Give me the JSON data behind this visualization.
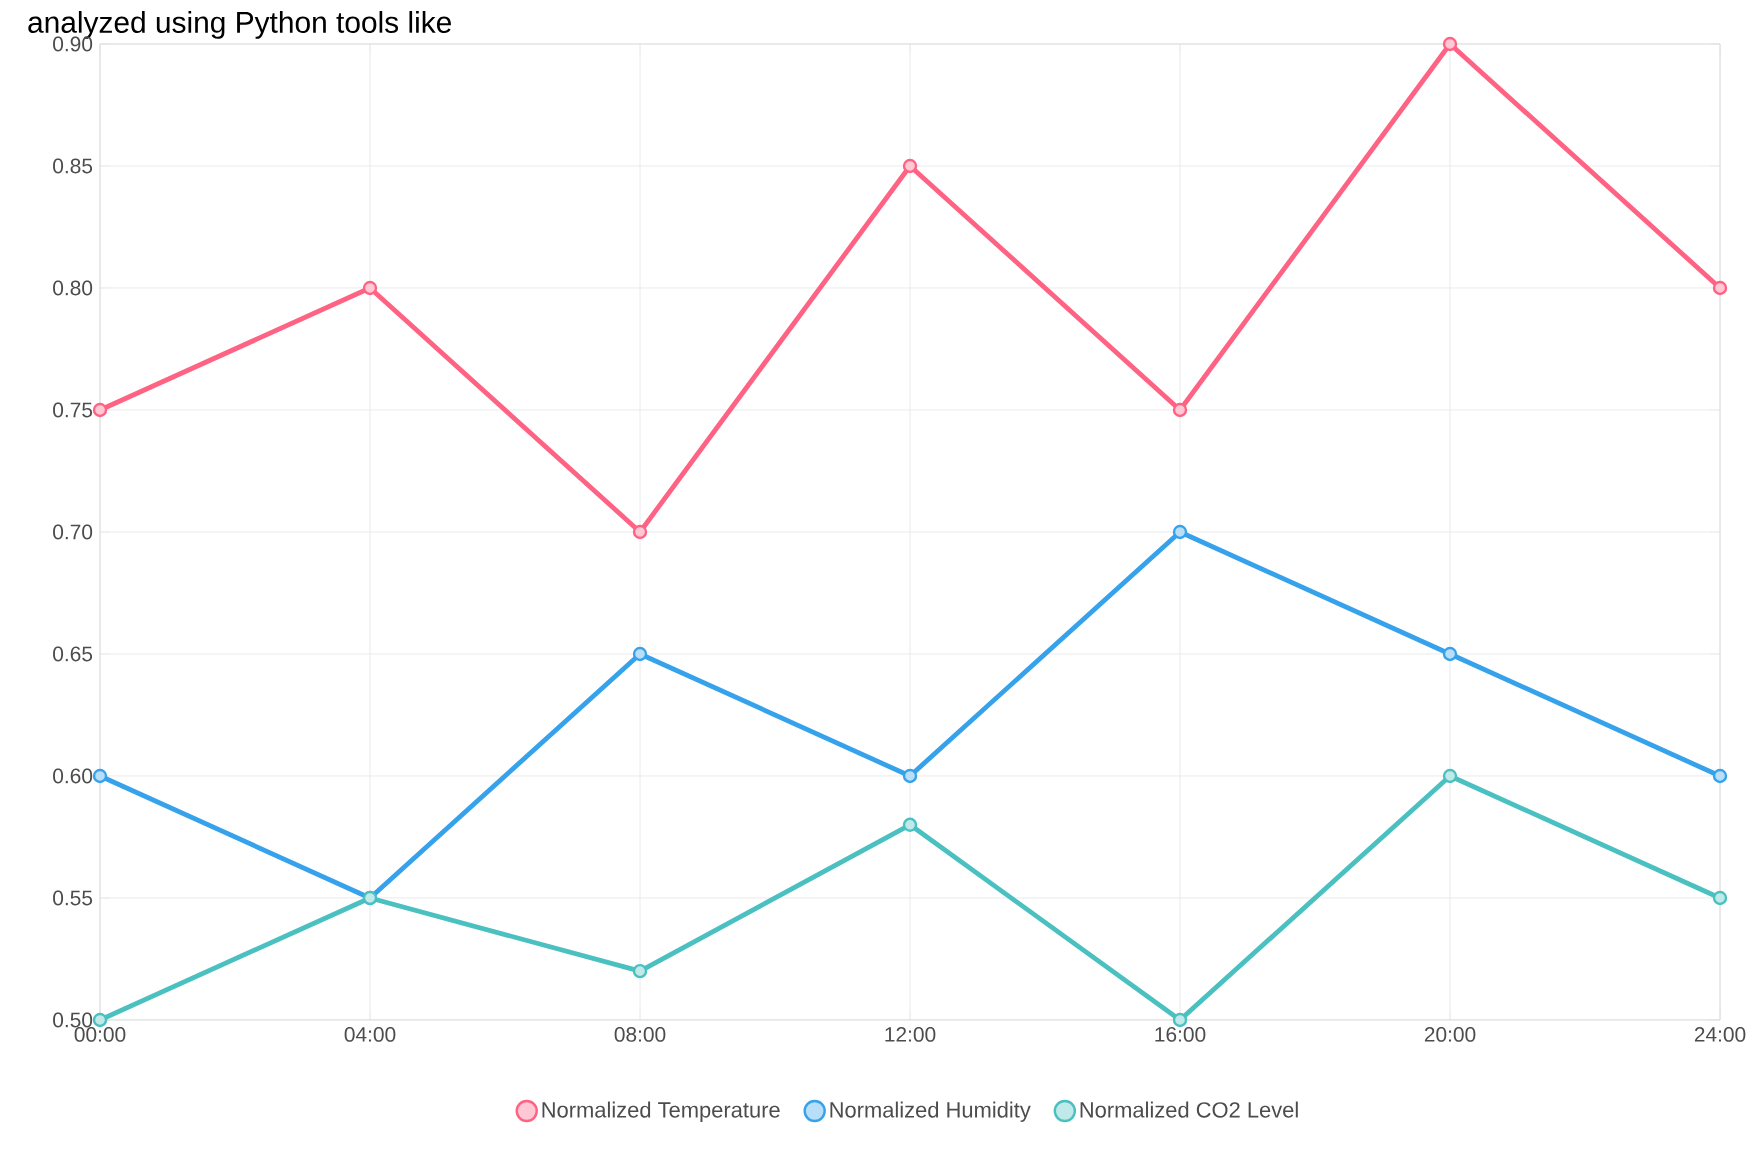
{
  "chart_data": {
    "type": "line",
    "annotations": [
      "analyzed using Python tools like"
    ],
    "categories": [
      "00:00",
      "04:00",
      "08:00",
      "12:00",
      "16:00",
      "20:00",
      "24:00"
    ],
    "series": [
      {
        "name": "Normalized Temperature",
        "color": "#ff6384",
        "values": [
          0.75,
          0.8,
          0.7,
          0.85,
          0.75,
          0.9,
          0.8
        ]
      },
      {
        "name": "Normalized Humidity",
        "color": "#36a2eb",
        "values": [
          0.6,
          0.55,
          0.65,
          0.6,
          0.7,
          0.65,
          0.6
        ]
      },
      {
        "name": "Normalized CO2 Level",
        "color": "#4bc0c0",
        "values": [
          0.5,
          0.55,
          0.52,
          0.58,
          0.5,
          0.6,
          0.55
        ]
      }
    ],
    "ylim": [
      0.5,
      0.9
    ],
    "yticks": [
      {
        "value": 0.5,
        "label": "0.50"
      },
      {
        "value": 0.55,
        "label": "0.55"
      },
      {
        "value": 0.6,
        "label": "0.60"
      },
      {
        "value": 0.65,
        "label": "0.65"
      },
      {
        "value": 0.7,
        "label": "0.70"
      },
      {
        "value": 0.75,
        "label": "0.75"
      },
      {
        "value": 0.8,
        "label": "0.80"
      },
      {
        "value": 0.85,
        "label": "0.85"
      },
      {
        "value": 0.9,
        "label": "0.90"
      }
    ],
    "grid": true,
    "legend": "bottom",
    "marker": "circle",
    "line_style": "solid"
  }
}
